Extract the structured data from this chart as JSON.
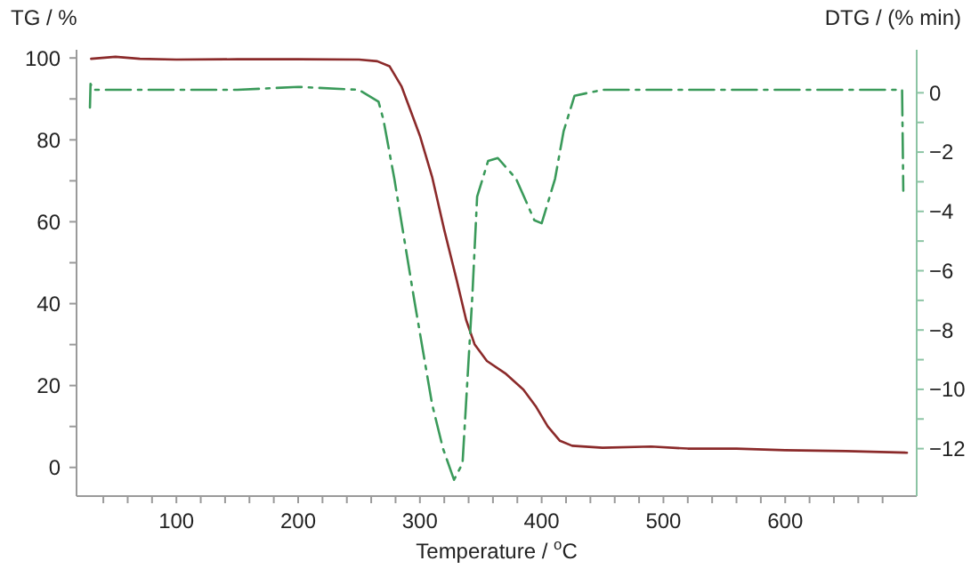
{
  "chart_data": {
    "type": "line",
    "xlabel": "Temperature / $^{o}$C",
    "ylabel": "TG / %",
    "y2label": "DTG / (% min)",
    "xlim": [
      18,
      708
    ],
    "xticks": [
      {
        "value": 40,
        "label": null
      },
      {
        "value": 60,
        "label": null
      },
      {
        "value": 80,
        "label": null
      },
      100,
      {
        "value": 120,
        "label": null
      },
      {
        "value": 140,
        "label": null
      },
      {
        "value": 160,
        "label": null
      },
      {
        "value": 180,
        "label": null
      },
      200,
      {
        "value": 220,
        "label": null
      },
      {
        "value": 240,
        "label": null
      },
      {
        "value": 260,
        "label": null
      },
      {
        "value": 280,
        "label": null
      },
      300,
      {
        "value": 320,
        "label": null
      },
      {
        "value": 340,
        "label": null
      },
      {
        "value": 360,
        "label": null
      },
      {
        "value": 380,
        "label": null
      },
      400,
      {
        "value": 420,
        "label": null
      },
      {
        "value": 440,
        "label": null
      },
      {
        "value": 460,
        "label": null
      },
      {
        "value": 480,
        "label": null
      },
      500,
      {
        "value": 520,
        "label": null
      },
      {
        "value": 540,
        "label": null
      },
      {
        "value": 560,
        "label": null
      },
      {
        "value": 580,
        "label": null
      },
      600,
      {
        "value": 620,
        "label": null
      },
      {
        "value": 640,
        "label": null
      },
      {
        "value": 660,
        "label": null
      },
      {
        "value": 680,
        "label": null
      }
    ],
    "ylim": [
      -7,
      102
    ],
    "yticks": [
      0,
      {
        "value": 10,
        "label": null
      },
      20,
      {
        "value": 30,
        "label": null
      },
      40,
      {
        "value": 50,
        "label": null
      },
      60,
      {
        "value": 70,
        "label": null
      },
      80,
      {
        "value": 90,
        "label": null
      },
      100
    ],
    "y2lim": [
      -13.6,
      1.45
    ],
    "y2ticks": [
      {
        "value": -12,
        "label": "−12"
      },
      {
        "value": -11,
        "label": null
      },
      {
        "value": -10,
        "label": "−10"
      },
      {
        "value": -9,
        "label": null
      },
      {
        "value": -8,
        "label": "−8"
      },
      {
        "value": -7,
        "label": null
      },
      {
        "value": -6,
        "label": "−6"
      },
      {
        "value": -5,
        "label": null
      },
      {
        "value": -4,
        "label": "−4"
      },
      {
        "value": -3,
        "label": null
      },
      {
        "value": -2,
        "label": "−2"
      },
      {
        "value": -1,
        "label": null
      },
      0
    ],
    "grid": false,
    "series": [
      {
        "color": "#8b2a2a",
        "line_style": "solid",
        "x": [
          30,
          50,
          70,
          100,
          150,
          200,
          250,
          265,
          275,
          285,
          295,
          300,
          310,
          320,
          330,
          338,
          345,
          355,
          370,
          385,
          395,
          405,
          415,
          425,
          450,
          490,
          520,
          560,
          600,
          650,
          700
        ],
        "values": [
          99.8,
          100.3,
          99.8,
          99.6,
          99.7,
          99.7,
          99.6,
          99.2,
          98,
          93,
          85,
          81,
          71,
          58,
          46,
          36,
          30,
          26,
          23,
          19,
          15,
          10,
          6.5,
          5.3,
          4.8,
          5.1,
          4.6,
          4.6,
          4.2,
          4.0,
          3.6
        ]
      },
      {
        "color": "#3a9a5a",
        "line_style": "dashed",
        "axis": "y2",
        "x": [
          29,
          29.5,
          32,
          60,
          100,
          150,
          200,
          250,
          266,
          270,
          279,
          295,
          310,
          319,
          328,
          335,
          343,
          347,
          356,
          364,
          379,
          394,
          400,
          411,
          418,
          427,
          450,
          500,
          550,
          600,
          650,
          696,
          697
        ],
        "values": [
          -0.5,
          0.3,
          0.1,
          0.1,
          0.1,
          0.1,
          0.2,
          0.1,
          -0.3,
          -0.9,
          -2.9,
          -6.9,
          -10.5,
          -12,
          -13.05,
          -12.5,
          -6.9,
          -3.5,
          -2.3,
          -2.2,
          -2.9,
          -4.3,
          -4.4,
          -2.9,
          -1.3,
          -0.1,
          0.1,
          0.1,
          0.1,
          0.1,
          0.1,
          0.1,
          -3.3
        ]
      }
    ]
  }
}
